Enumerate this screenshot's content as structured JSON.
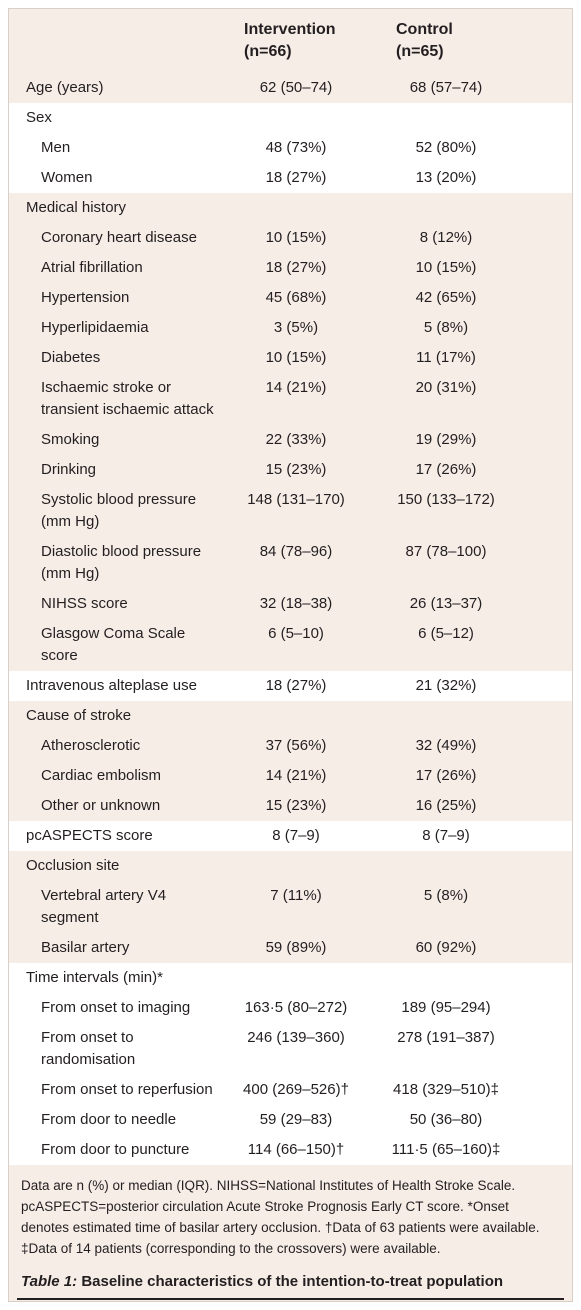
{
  "header": {
    "intervention": [
      "Intervention",
      "(n=66)"
    ],
    "control": [
      "Control",
      "(n=65)"
    ]
  },
  "sections": [
    {
      "rows": [
        [
          "Age (years)",
          "62 (50–74)",
          "68 (57–74)"
        ]
      ]
    },
    {
      "heading": "Sex",
      "rows": [
        [
          "Men",
          "48 (73%)",
          "52 (80%)"
        ],
        [
          "Women",
          "18 (27%)",
          "13 (20%)"
        ]
      ]
    },
    {
      "heading": "Medical history",
      "rows": [
        [
          "Coronary heart disease",
          "10 (15%)",
          "8 (12%)"
        ],
        [
          "Atrial fibrillation",
          "18 (27%)",
          "10 (15%)"
        ],
        [
          "Hypertension",
          "45 (68%)",
          "42 (65%)"
        ],
        [
          "Hyperlipidaemia",
          "3 (5%)",
          "5 (8%)"
        ],
        [
          "Diabetes",
          "10 (15%)",
          "11 (17%)"
        ],
        [
          "Ischaemic stroke or transient ischaemic attack",
          "14 (21%)",
          "20 (31%)"
        ],
        [
          "Smoking",
          "22 (33%)",
          "19 (29%)"
        ],
        [
          "Drinking",
          "15 (23%)",
          "17 (26%)"
        ],
        [
          "Systolic blood pressure (mm Hg)",
          "148 (131–170)",
          "150 (133–172)"
        ],
        [
          "Diastolic blood pressure (mm Hg)",
          "84 (78–96)",
          "87 (78–100)"
        ],
        [
          "NIHSS score",
          "32 (18–38)",
          "26 (13–37)"
        ],
        [
          "Glasgow Coma Scale score",
          "6 (5–10)",
          "6 (5–12)"
        ]
      ]
    },
    {
      "rows": [
        [
          "Intravenous alteplase use",
          "18 (27%)",
          "21 (32%)"
        ]
      ]
    },
    {
      "heading": "Cause of stroke",
      "rows": [
        [
          "Atherosclerotic",
          "37 (56%)",
          "32 (49%)"
        ],
        [
          "Cardiac embolism",
          "14 (21%)",
          "17 (26%)"
        ],
        [
          "Other or unknown",
          "15 (23%)",
          "16 (25%)"
        ]
      ]
    },
    {
      "rows": [
        [
          "pcASPECTS score",
          "8 (7–9)",
          "8 (7–9)"
        ]
      ]
    },
    {
      "heading": "Occlusion site",
      "rows": [
        [
          "Vertebral artery V4 segment",
          "7 (11%)",
          "5 (8%)"
        ],
        [
          "Basilar artery",
          "59 (89%)",
          "60 (92%)"
        ]
      ]
    },
    {
      "heading": "Time intervals (min)*",
      "rows": [
        [
          "From onset to imaging",
          "163·5 (80–272)",
          "189 (95–294)"
        ],
        [
          "From onset to randomisation",
          "246 (139–360)",
          "278 (191–387)"
        ],
        [
          "From onset to reperfusion",
          "400 (269–526)†",
          "418 (329–510)‡"
        ],
        [
          "From door to needle",
          "59 (29–83)",
          "50 (36–80)"
        ],
        [
          "From door to puncture",
          "114 (66–150)†",
          "111·5 (65–160)‡"
        ]
      ]
    }
  ],
  "footnote": "Data are n (%) or median (IQR). NIHSS=National Institutes of Health Stroke Scale. pcASPECTS=posterior circulation Acute Stroke Prognosis Early CT score. *Onset denotes estimated time of basilar artery occlusion. †Data of 63 patients were available. ‡Data of 14 patients (corresponding to the crossovers) were available.",
  "caption": {
    "label": "Table 1:",
    "text": "Baseline characteristics of the intention-to-treat population"
  }
}
